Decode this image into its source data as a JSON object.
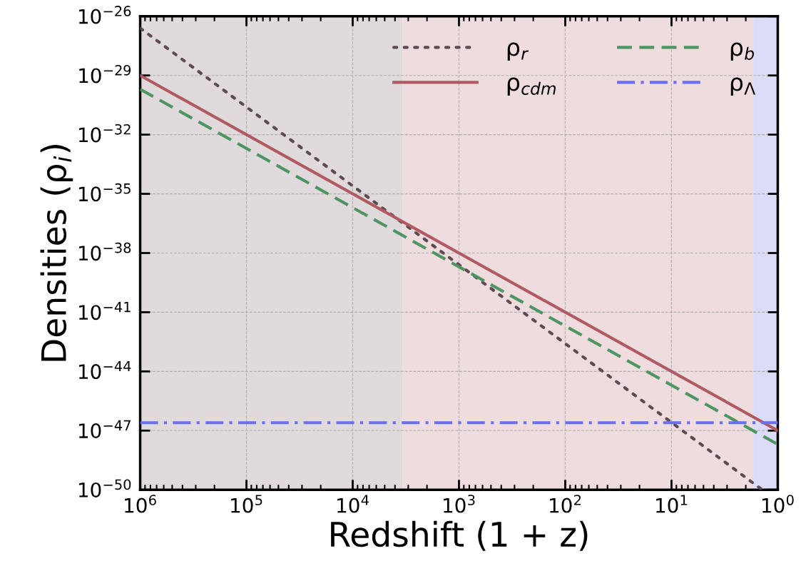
{
  "chart_data": {
    "type": "line",
    "xlabel": "Redshift (1 + z)",
    "ylabel": "Densities (ρ$_{i}$)",
    "log": "xy",
    "xlim": [
      1000000,
      1
    ],
    "ylim": [
      1e-50,
      1e-26
    ],
    "xticks": [
      {
        "value": 1000000,
        "label": "10$^{6}$"
      },
      {
        "value": 100000,
        "label": "10$^{5}$"
      },
      {
        "value": 10000,
        "label": "10$^{4}$"
      },
      {
        "value": 1000,
        "label": "10$^{3}$"
      },
      {
        "value": 100,
        "label": "10$^{2}$"
      },
      {
        "value": 10,
        "label": "10$^{1}$"
      },
      {
        "value": 1,
        "label": "10$^{0}$"
      }
    ],
    "yticks": [
      {
        "value": 1e-26,
        "label": "10$^{−26}$"
      },
      {
        "value": 1e-29,
        "label": "10$^{−29}$"
      },
      {
        "value": 1e-32,
        "label": "10$^{−32}$"
      },
      {
        "value": 1e-35,
        "label": "10$^{−35}$"
      },
      {
        "value": 1e-38,
        "label": "10$^{−38}$"
      },
      {
        "value": 1e-41,
        "label": "10$^{−41}$"
      },
      {
        "value": 1e-44,
        "label": "10$^{−44}$"
      },
      {
        "value": 1e-47,
        "label": "10$^{−47}$"
      },
      {
        "value": 1e-50,
        "label": "10$^{−50}$"
      }
    ],
    "grid": true,
    "legend": "top right",
    "series": [
      {
        "name": "ρ$_{r}$",
        "color": "#5e4a50",
        "line_style": "dotted",
        "x": [
          1000000,
          1.4
        ],
        "values": [
          2.5e-27,
          1e-50
        ]
      },
      {
        "name": "ρ$_{cdm}$",
        "color": "#b05a62",
        "line_style": "solid",
        "x": [
          1000000,
          1
        ],
        "values": [
          1e-29,
          1e-47
        ]
      },
      {
        "name": "ρ$_{b}$",
        "color": "#4f9563",
        "line_style": "dashed",
        "x": [
          1000000,
          1
        ],
        "values": [
          2e-30,
          2e-48
        ]
      },
      {
        "name": "ρ$_{Λ}$",
        "color": "#6a6ef0",
        "line_style": "dashdot",
        "x": [
          1000000,
          1
        ],
        "values": [
          2.5e-47,
          2.5e-47
        ]
      }
    ],
    "bands": [
      {
        "axis": "x",
        "from": 1000000,
        "to": 3400,
        "color": "#e0dadd"
      },
      {
        "axis": "x",
        "from": 3400,
        "to": 1.7,
        "color": "#eedcdf"
      },
      {
        "axis": "x",
        "from": 1.7,
        "to": 1,
        "color": "#dcdcf8"
      }
    ]
  }
}
